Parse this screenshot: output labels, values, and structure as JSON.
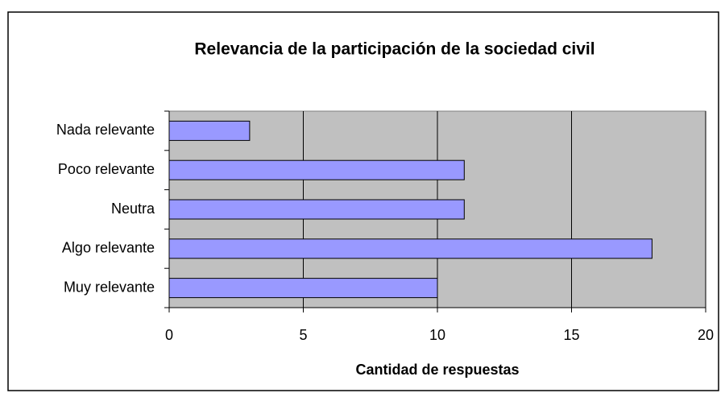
{
  "chart_data": {
    "type": "barh",
    "title": "Relevancia de la participación de la sociedad civil",
    "categories": [
      "Nada relevante",
      "Poco relevante",
      "Neutra",
      "Algo relevante",
      "Muy relevante"
    ],
    "values": [
      3,
      11,
      11,
      18,
      10
    ],
    "color": "#9999ff",
    "xlim": [
      0,
      20
    ],
    "xticks": [
      0,
      5,
      10,
      15,
      20
    ],
    "grid": true,
    "x_label": "Cantidad de respuestas"
  }
}
